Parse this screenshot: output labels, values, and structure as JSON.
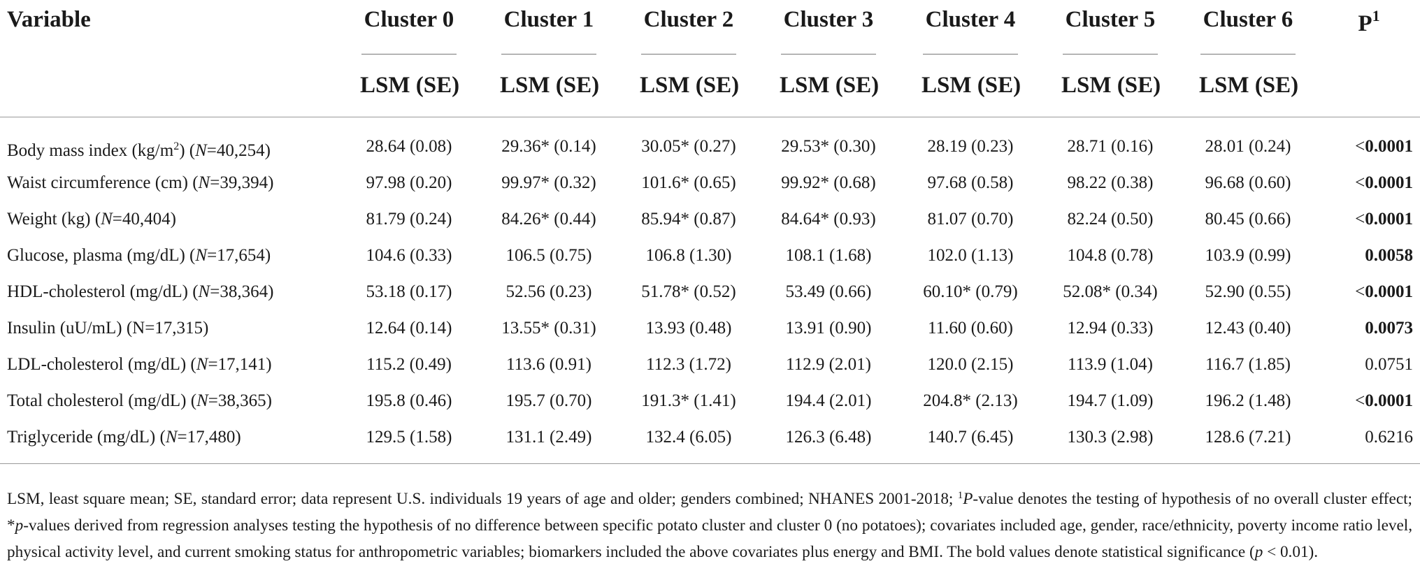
{
  "table": {
    "header_variable": "Variable",
    "clusters": [
      "Cluster 0",
      "Cluster 1",
      "Cluster 2",
      "Cluster 3",
      "Cluster 4",
      "Cluster 5",
      "Cluster 6"
    ],
    "subheader": "LSM (SE)",
    "p_header": "P",
    "p_header_sup": "1",
    "rows": [
      {
        "label_pre": "Body mass index (kg/m",
        "label_sup": "2",
        "label_post": ") (",
        "n_var": "N",
        "n_val": "=40,254)",
        "values": [
          "28.64 (0.08)",
          "29.36* (0.14)",
          "30.05* (0.27)",
          "29.53* (0.30)",
          "28.19 (0.23)",
          "28.71 (0.16)",
          "28.01 (0.24)"
        ],
        "p_prefix": "<",
        "p_value": "0.0001",
        "p_bold": true
      },
      {
        "label_pre": "Waist circumference (cm) (",
        "label_sup": "",
        "label_post": "",
        "n_var": "N",
        "n_val": "=39,394)",
        "values": [
          "97.98 (0.20)",
          "99.97* (0.32)",
          "101.6* (0.65)",
          "99.92* (0.68)",
          "97.68 (0.58)",
          "98.22 (0.38)",
          "96.68 (0.60)"
        ],
        "p_prefix": "<",
        "p_value": "0.0001",
        "p_bold": true
      },
      {
        "label_pre": "Weight (kg) (",
        "label_sup": "",
        "label_post": "",
        "n_var": "N",
        "n_val": "=40,404)",
        "values": [
          "81.79 (0.24)",
          "84.26* (0.44)",
          "85.94* (0.87)",
          "84.64* (0.93)",
          "81.07 (0.70)",
          "82.24 (0.50)",
          "80.45 (0.66)"
        ],
        "p_prefix": "<",
        "p_value": "0.0001",
        "p_bold": true
      },
      {
        "label_pre": "Glucose, plasma (mg/dL) (",
        "label_sup": "",
        "label_post": "",
        "n_var": "N",
        "n_val": "=17,654)",
        "values": [
          "104.6 (0.33)",
          "106.5 (0.75)",
          "106.8 (1.30)",
          "108.1 (1.68)",
          "102.0 (1.13)",
          "104.8 (0.78)",
          "103.9 (0.99)"
        ],
        "p_prefix": "",
        "p_value": "0.0058",
        "p_bold": true
      },
      {
        "label_pre": "HDL-cholesterol (mg/dL) (",
        "label_sup": "",
        "label_post": "",
        "n_var": "N",
        "n_val": "=38,364)",
        "values": [
          "53.18 (0.17)",
          "52.56 (0.23)",
          "51.78* (0.52)",
          "53.49 (0.66)",
          "60.10* (0.79)",
          "52.08* (0.34)",
          "52.90 (0.55)"
        ],
        "p_prefix": "<",
        "p_value": "0.0001",
        "p_bold": true
      },
      {
        "label_pre": "Insulin (uU/mL) (N=17,315)",
        "label_sup": "",
        "label_post": "",
        "n_var": "",
        "n_val": "",
        "values": [
          "12.64 (0.14)",
          "13.55* (0.31)",
          "13.93 (0.48)",
          "13.91 (0.90)",
          "11.60 (0.60)",
          "12.94 (0.33)",
          "12.43 (0.40)"
        ],
        "p_prefix": "",
        "p_value": "0.0073",
        "p_bold": true
      },
      {
        "label_pre": "LDL-cholesterol (mg/dL) (",
        "label_sup": "",
        "label_post": "",
        "n_var": "N",
        "n_val": "=17,141)",
        "values": [
          "115.2 (0.49)",
          "113.6 (0.91)",
          "112.3 (1.72)",
          "112.9 (2.01)",
          "120.0 (2.15)",
          "113.9 (1.04)",
          "116.7 (1.85)"
        ],
        "p_prefix": "",
        "p_value": "0.0751",
        "p_bold": false
      },
      {
        "label_pre": "Total cholesterol (mg/dL) (",
        "label_sup": "",
        "label_post": "",
        "n_var": "N",
        "n_val": "=38,365)",
        "values": [
          "195.8 (0.46)",
          "195.7 (0.70)",
          "191.3* (1.41)",
          "194.4 (2.01)",
          "204.8* (2.13)",
          "194.7 (1.09)",
          "196.2 (1.48)"
        ],
        "p_prefix": "<",
        "p_value": "0.0001",
        "p_bold": true
      },
      {
        "label_pre": "Triglyceride (mg/dL) (",
        "label_sup": "",
        "label_post": "",
        "n_var": "N",
        "n_val": "=17,480)",
        "values": [
          "129.5 (1.58)",
          "131.1 (2.49)",
          "132.4 (6.05)",
          "126.3 (6.48)",
          "140.7 (6.45)",
          "130.3 (2.98)",
          "128.6 (7.21)"
        ],
        "p_prefix": "",
        "p_value": "0.6216",
        "p_bold": false
      }
    ]
  },
  "footnote": {
    "part1": "LSM, least square mean; SE, standard error; data represent U.S. individuals 19 years of age and older; genders combined; NHANES 2001-2018; ",
    "sup1": "1",
    "p_italic": "P",
    "part2": "-value denotes the testing of hypothesis of no overall cluster effect; *",
    "p_italic2": "p",
    "part3": "-values derived from regression analyses testing the hypothesis of no difference between specific potato cluster and cluster 0 (no potatoes); covariates included age, gender, race/ethnicity, poverty income ratio level, physical activity level, and current smoking status for anthropometric variables; biomarkers included the above covariates plus energy and BMI. The bold values denote statistical significance (",
    "p_italic3": "p",
    "part4": " < 0.01)."
  }
}
